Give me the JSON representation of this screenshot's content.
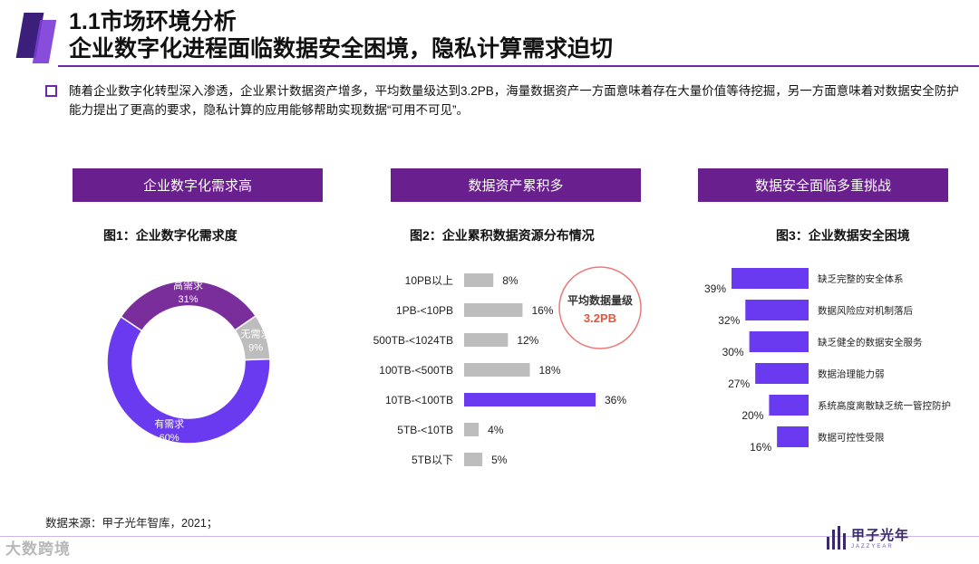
{
  "header": {
    "title_line1": "1.1市场环境分析",
    "title_line2": "企业数字化进程面临数据安全困境，隐私计算需求迫切"
  },
  "intro": "随着企业数字化转型深入渗透，企业累计数据资产增多，平均数量级达到3.2PB，海量数据资产一方面意味着存在大量价值等待挖掘，另一方面意味着对数据安全防护能力提出了更高的要求，隐私计算的应用能够帮助实现数据“可用不可见”。",
  "panels": [
    {
      "header": "企业数字化需求高",
      "figure_title": "图1：企业数字化需求度"
    },
    {
      "header": "数据资产累积多",
      "figure_title": "图2：企业累积数据资源分布情况"
    },
    {
      "header": "数据安全面临多重挑战",
      "figure_title": "图3：企业数据安全困境"
    }
  ],
  "callout": {
    "label": "平均数据量级",
    "value": "3.2PB"
  },
  "source": "数据来源：甲子光年智库，2021；",
  "logo": {
    "name": "甲子光年",
    "sub": "JAZZYEAR"
  },
  "watermark": "大数跨境",
  "colors": {
    "purple": "#6a1f8f",
    "violet": "#6a3af0",
    "pie_dark": "#7a2e9c",
    "grey": "#bdbdbd",
    "callout_ring": "#e97a7a",
    "callout_value": "#e5533d"
  },
  "chart_data": [
    {
      "type": "pie",
      "donut": true,
      "title": "图1：企业数字化需求度",
      "categories": [
        "高需求",
        "无需求",
        "有需求"
      ],
      "values": [
        31,
        9,
        60
      ],
      "labels": [
        "31%",
        "9%",
        "60%"
      ],
      "colors": [
        "#7a2e9c",
        "#bdbdbd",
        "#6a3af0"
      ]
    },
    {
      "type": "bar",
      "orientation": "horizontal",
      "title": "图2：企业累积数据资源分布情况",
      "categories": [
        "10PB以上",
        "1PB-<10PB",
        "500TB-<1024TB",
        "100TB-<500TB",
        "10TB-<100TB",
        "5TB-<10TB",
        "5TB以下"
      ],
      "values": [
        8,
        16,
        12,
        18,
        36,
        4,
        5
      ],
      "labels": [
        "8%",
        "16%",
        "12%",
        "18%",
        "36%",
        "4%",
        "5%"
      ],
      "highlight": "10TB-<100TB",
      "xlim": [
        0,
        36
      ]
    },
    {
      "type": "bar",
      "orientation": "horizontal",
      "direction": "right-to-left",
      "title": "图3：企业数据安全困境",
      "categories": [
        "缺乏完整的安全体系",
        "数据风险应对机制落后",
        "缺乏健全的数据安全服务",
        "数据治理能力弱",
        "系统高度离散缺乏统一管控防护",
        "数据可控性受限"
      ],
      "values": [
        39,
        32,
        30,
        27,
        20,
        16
      ],
      "labels": [
        "39%",
        "32%",
        "30%",
        "27%",
        "20%",
        "16%"
      ],
      "xlim": [
        0,
        39
      ]
    }
  ]
}
